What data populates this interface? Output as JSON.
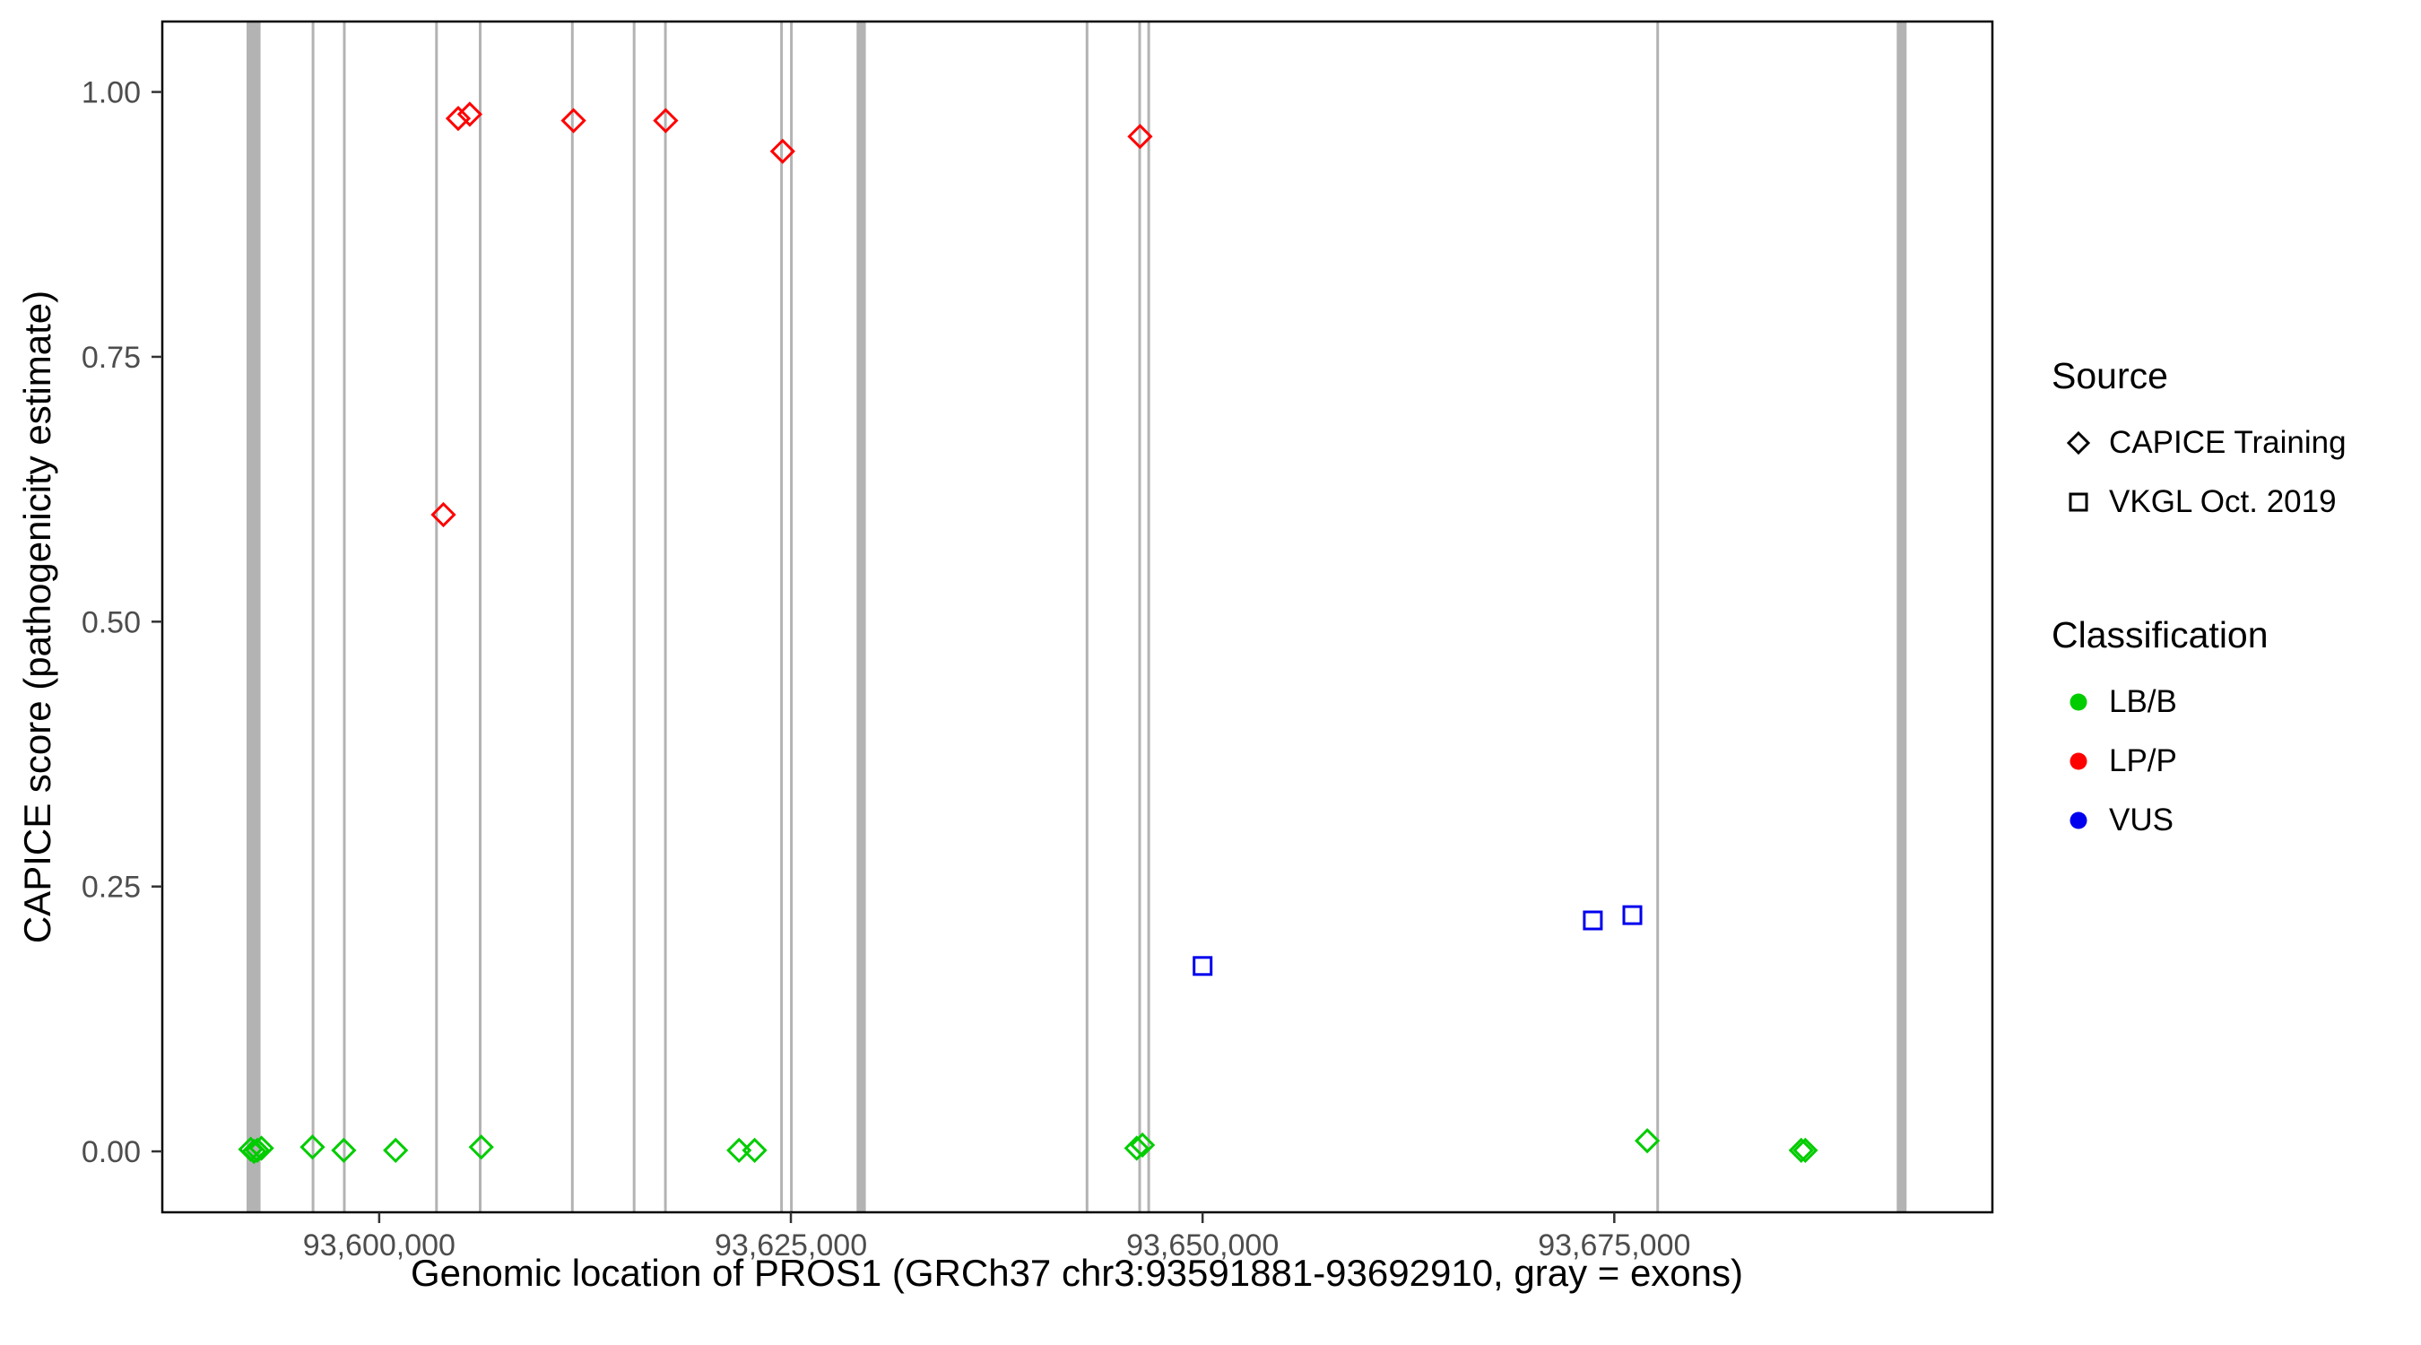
{
  "axes": {
    "x_title": "Genomic location of PROS1 (GRCh37 chr3:93591881-93692910, gray = exons)",
    "y_title": "CAPICE score (pathogenicity estimate)"
  },
  "legend": {
    "source": {
      "title": "Source",
      "items": [
        {
          "label": "CAPICE Training",
          "shape": "diamond"
        },
        {
          "label": "VKGL Oct. 2019",
          "shape": "square"
        }
      ]
    },
    "classification": {
      "title": "Classification",
      "items": [
        {
          "label": "LB/B",
          "color": "#00CC00"
        },
        {
          "label": "LP/P",
          "color": "#FF0000"
        },
        {
          "label": "VUS",
          "color": "#0000EE"
        }
      ]
    }
  },
  "chart_data": {
    "type": "scatter",
    "title": "",
    "xlabel": "Genomic location of PROS1 (GRCh37 chr3:93591881-93692910, gray = exons)",
    "ylabel": "CAPICE score (pathogenicity estimate)",
    "xlim": [
      93586830,
      93697960
    ],
    "ylim": [
      -0.0575,
      1.0665
    ],
    "grid": false,
    "legend_position": "right",
    "panel_border_color": "#000000",
    "tick_color": "#333333",
    "tick_label_color": "#4D4D4D",
    "exon_color": "#B3B3B3",
    "x_ticks": [
      {
        "value": 93600000,
        "label": "93,600,000"
      },
      {
        "value": 93625000,
        "label": "93,625,000"
      },
      {
        "value": 93650000,
        "label": "93,650,000"
      },
      {
        "value": 93675000,
        "label": "93,675,000"
      }
    ],
    "y_ticks": [
      {
        "value": 0.0,
        "label": "0.00"
      },
      {
        "value": 0.25,
        "label": "0.25"
      },
      {
        "value": 0.5,
        "label": "0.50"
      },
      {
        "value": 0.75,
        "label": "0.75"
      },
      {
        "value": 1.0,
        "label": "1.00"
      }
    ],
    "exons": [
      [
        93591950,
        93592800
      ],
      [
        93595900,
        93596050
      ],
      [
        93597800,
        93597950
      ],
      [
        93603400,
        93603550
      ],
      [
        93606050,
        93606200
      ],
      [
        93611650,
        93611800
      ],
      [
        93615400,
        93615550
      ],
      [
        93617300,
        93617450
      ],
      [
        93624350,
        93624500
      ],
      [
        93624950,
        93625100
      ],
      [
        93628990,
        93629550
      ],
      [
        93642900,
        93643050
      ],
      [
        93646100,
        93646250
      ],
      [
        93646650,
        93646800
      ],
      [
        93677550,
        93677700
      ],
      [
        93692150,
        93692750
      ]
    ],
    "series": [
      {
        "name": "CAPICE Training / LP/P",
        "source": "CAPICE Training",
        "classification": "LP/P",
        "shape": "diamond",
        "color": "#FF0000",
        "points": [
          [
            93603900,
            0.601
          ],
          [
            93604800,
            0.975
          ],
          [
            93605500,
            0.979
          ],
          [
            93611800,
            0.973
          ],
          [
            93617400,
            0.973
          ],
          [
            93624500,
            0.944
          ],
          [
            93646200,
            0.958
          ]
        ]
      },
      {
        "name": "CAPICE Training / LB/B",
        "source": "CAPICE Training",
        "classification": "LB/B",
        "shape": "diamond",
        "color": "#00CC00",
        "points": [
          [
            93592200,
            0.002
          ],
          [
            93592400,
            0.0
          ],
          [
            93592600,
            0.001
          ],
          [
            93592850,
            0.003
          ],
          [
            93595950,
            0.004
          ],
          [
            93597850,
            0.001
          ],
          [
            93601000,
            0.001
          ],
          [
            93606200,
            0.004
          ],
          [
            93621850,
            0.001
          ],
          [
            93622800,
            0.001
          ],
          [
            93646000,
            0.003
          ],
          [
            93646350,
            0.006
          ],
          [
            93677000,
            0.01
          ],
          [
            93686350,
            0.001
          ],
          [
            93686600,
            0.001
          ]
        ]
      },
      {
        "name": "VKGL Oct. 2019 / VUS",
        "source": "VKGL Oct. 2019",
        "classification": "VUS",
        "shape": "square",
        "color": "#0000EE",
        "points": [
          [
            93650000,
            0.175
          ],
          [
            93673700,
            0.218
          ],
          [
            93676100,
            0.223
          ]
        ]
      }
    ]
  }
}
